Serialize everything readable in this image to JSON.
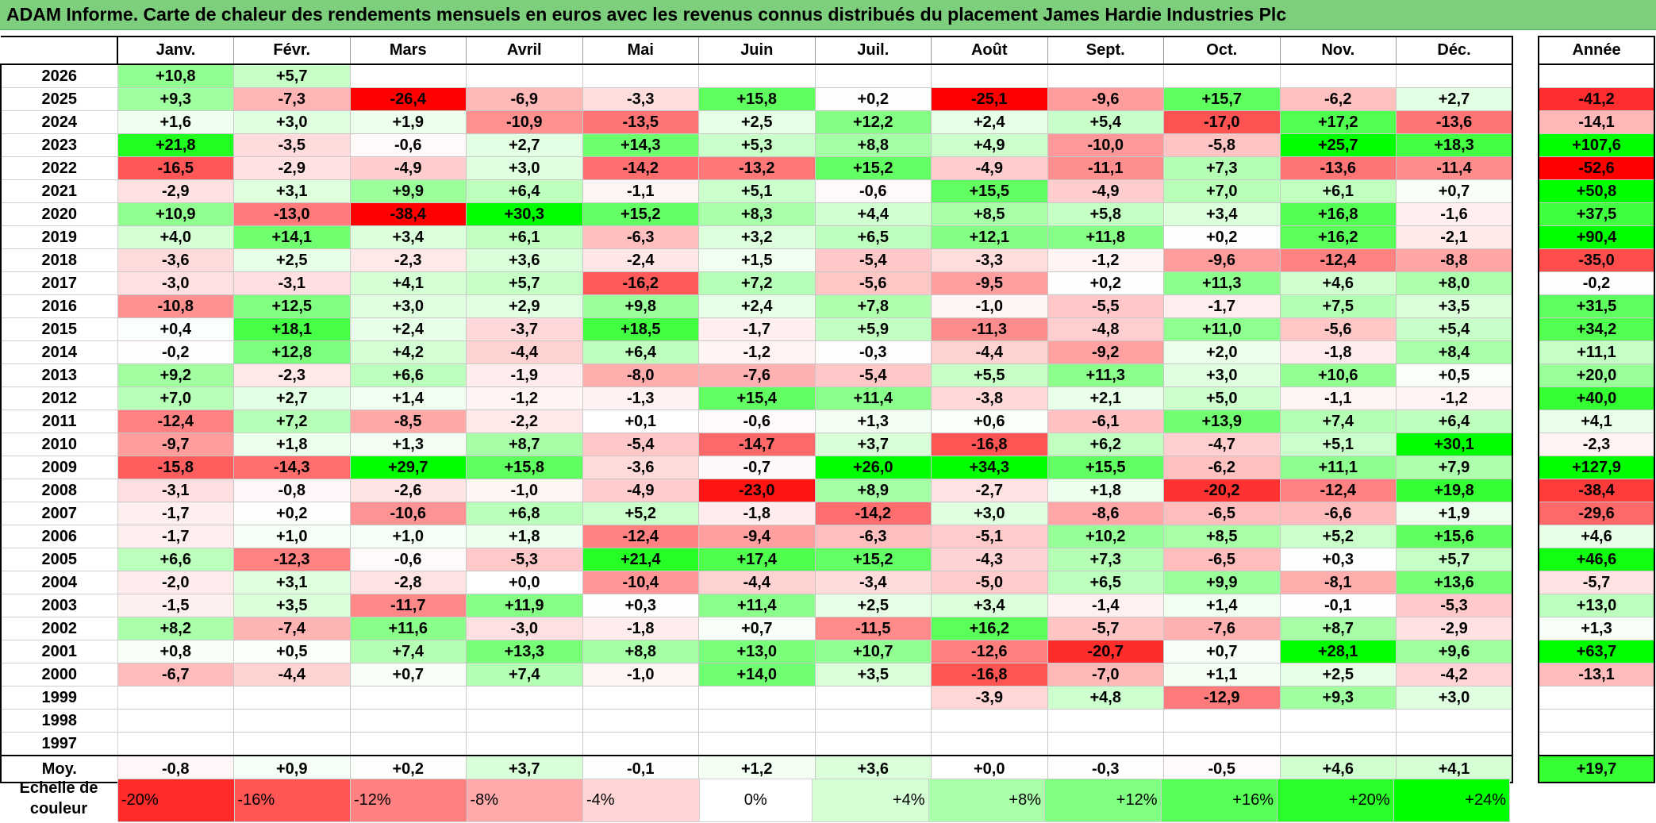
{
  "title": "ADAM Informe. Carte de chaleur des rendements mensuels en euros avec les revenus connus distribués du placement James Hardie Industries Plc",
  "colors": {
    "title_bg": "#7dcf7d",
    "max_red": "#ff0000",
    "max_green": "#00ff00",
    "white": "#ffffff"
  },
  "chart_data": {
    "type": "heatmap",
    "months": [
      "Janv.",
      "Févr.",
      "Mars",
      "Avril",
      "Mai",
      "Juin",
      "Juil.",
      "Août",
      "Sept.",
      "Oct.",
      "Nov.",
      "Déc."
    ],
    "annual_header": "Année",
    "average_label": "Moy.",
    "rows": [
      {
        "year": "2026",
        "values": [
          "+10,8",
          "+5,7",
          "",
          "",
          "",
          "",
          "",
          "",
          "",
          "",
          "",
          ""
        ],
        "annual": ""
      },
      {
        "year": "2025",
        "values": [
          "+9,3",
          "-7,3",
          "-26,4",
          "-6,9",
          "-3,3",
          "+15,8",
          "+0,2",
          "-25,1",
          "-9,6",
          "+15,7",
          "-6,2",
          "+2,7"
        ],
        "annual": "-41,2"
      },
      {
        "year": "2024",
        "values": [
          "+1,6",
          "+3,0",
          "+1,9",
          "-10,9",
          "-13,5",
          "+2,5",
          "+12,2",
          "+2,4",
          "+5,4",
          "-17,0",
          "+17,2",
          "-13,6"
        ],
        "annual": "-14,1"
      },
      {
        "year": "2023",
        "values": [
          "+21,8",
          "-3,5",
          "-0,6",
          "+2,7",
          "+14,3",
          "+5,3",
          "+8,8",
          "+4,9",
          "-10,0",
          "-5,8",
          "+25,7",
          "+18,3"
        ],
        "annual": "+107,6"
      },
      {
        "year": "2022",
        "values": [
          "-16,5",
          "-2,9",
          "-4,9",
          "+3,0",
          "-14,2",
          "-13,2",
          "+15,2",
          "-4,9",
          "-11,1",
          "+7,3",
          "-13,6",
          "-11,4"
        ],
        "annual": "-52,6"
      },
      {
        "year": "2021",
        "values": [
          "-2,9",
          "+3,1",
          "+9,9",
          "+6,4",
          "-1,1",
          "+5,1",
          "-0,6",
          "+15,5",
          "-4,9",
          "+7,0",
          "+6,1",
          "+0,7"
        ],
        "annual": "+50,8"
      },
      {
        "year": "2020",
        "values": [
          "+10,9",
          "-13,0",
          "-38,4",
          "+30,3",
          "+15,2",
          "+8,3",
          "+4,4",
          "+8,5",
          "+5,8",
          "+3,4",
          "+16,8",
          "-1,6"
        ],
        "annual": "+37,5"
      },
      {
        "year": "2019",
        "values": [
          "+4,0",
          "+14,1",
          "+3,4",
          "+6,1",
          "-6,3",
          "+3,2",
          "+6,5",
          "+12,1",
          "+11,8",
          "+0,2",
          "+16,2",
          "-2,1"
        ],
        "annual": "+90,4"
      },
      {
        "year": "2018",
        "values": [
          "-3,6",
          "+2,5",
          "-2,3",
          "+3,6",
          "-2,4",
          "+1,5",
          "-5,4",
          "-3,3",
          "-1,2",
          "-9,6",
          "-12,4",
          "-8,8"
        ],
        "annual": "-35,0"
      },
      {
        "year": "2017",
        "values": [
          "-3,0",
          "-3,1",
          "+4,1",
          "+5,7",
          "-16,2",
          "+7,2",
          "-5,6",
          "-9,5",
          "+0,2",
          "+11,3",
          "+4,6",
          "+8,0"
        ],
        "annual": "-0,2"
      },
      {
        "year": "2016",
        "values": [
          "-10,8",
          "+12,5",
          "+3,0",
          "+2,9",
          "+9,8",
          "+2,4",
          "+7,8",
          "-1,0",
          "-5,5",
          "-1,7",
          "+7,5",
          "+3,5"
        ],
        "annual": "+31,5"
      },
      {
        "year": "2015",
        "values": [
          "+0,4",
          "+18,1",
          "+2,4",
          "-3,7",
          "+18,5",
          "-1,7",
          "+5,9",
          "-11,3",
          "-4,8",
          "+11,0",
          "-5,6",
          "+5,4"
        ],
        "annual": "+34,2"
      },
      {
        "year": "2014",
        "values": [
          "-0,2",
          "+12,8",
          "+4,2",
          "-4,4",
          "+6,4",
          "-1,2",
          "-0,3",
          "-4,4",
          "-9,2",
          "+2,0",
          "-1,8",
          "+8,4"
        ],
        "annual": "+11,1"
      },
      {
        "year": "2013",
        "values": [
          "+9,2",
          "-2,3",
          "+6,6",
          "-1,9",
          "-8,0",
          "-7,6",
          "-5,4",
          "+5,5",
          "+11,3",
          "+3,0",
          "+10,6",
          "+0,5"
        ],
        "annual": "+20,0"
      },
      {
        "year": "2012",
        "values": [
          "+7,0",
          "+2,7",
          "+1,4",
          "-1,2",
          "-1,3",
          "+15,4",
          "+11,4",
          "-3,8",
          "+2,1",
          "+5,0",
          "-1,1",
          "-1,2"
        ],
        "annual": "+40,0"
      },
      {
        "year": "2011",
        "values": [
          "-12,4",
          "+7,2",
          "-8,5",
          "-2,2",
          "+0,1",
          "-0,6",
          "+1,3",
          "+0,6",
          "-6,1",
          "+13,9",
          "+7,4",
          "+6,4"
        ],
        "annual": "+4,1"
      },
      {
        "year": "2010",
        "values": [
          "-9,7",
          "+1,8",
          "+1,3",
          "+8,7",
          "-5,4",
          "-14,7",
          "+3,7",
          "-16,8",
          "+6,2",
          "-4,7",
          "+5,1",
          "+30,1"
        ],
        "annual": "-2,3"
      },
      {
        "year": "2009",
        "values": [
          "-15,8",
          "-14,3",
          "+29,7",
          "+15,8",
          "-3,6",
          "-0,7",
          "+26,0",
          "+34,3",
          "+15,5",
          "-6,2",
          "+11,1",
          "+7,9"
        ],
        "annual": "+127,9"
      },
      {
        "year": "2008",
        "values": [
          "-3,1",
          "-0,8",
          "-2,6",
          "-1,0",
          "-4,9",
          "-23,0",
          "+8,9",
          "-2,7",
          "+1,8",
          "-20,2",
          "-12,4",
          "+19,8"
        ],
        "annual": "-38,4"
      },
      {
        "year": "2007",
        "values": [
          "-1,7",
          "+0,2",
          "-10,6",
          "+6,8",
          "+5,2",
          "-1,8",
          "-14,2",
          "+3,0",
          "-8,6",
          "-6,5",
          "-6,6",
          "+1,9"
        ],
        "annual": "-29,6"
      },
      {
        "year": "2006",
        "values": [
          "-1,7",
          "+1,0",
          "+1,0",
          "+1,8",
          "-12,4",
          "-9,4",
          "-6,3",
          "-5,1",
          "+10,2",
          "+8,5",
          "+5,2",
          "+15,6"
        ],
        "annual": "+4,6"
      },
      {
        "year": "2005",
        "values": [
          "+6,6",
          "-12,3",
          "-0,6",
          "-5,3",
          "+21,4",
          "+17,4",
          "+15,2",
          "-4,3",
          "+7,3",
          "-6,5",
          "+0,3",
          "+5,7"
        ],
        "annual": "+46,6"
      },
      {
        "year": "2004",
        "values": [
          "-2,0",
          "+3,1",
          "-2,8",
          "+0,0",
          "-10,4",
          "-4,4",
          "-3,4",
          "-5,0",
          "+6,5",
          "+9,9",
          "-8,1",
          "+13,6"
        ],
        "annual": "-5,7"
      },
      {
        "year": "2003",
        "values": [
          "-1,5",
          "+3,5",
          "-11,7",
          "+11,9",
          "+0,3",
          "+11,4",
          "+2,5",
          "+3,4",
          "-1,4",
          "+1,4",
          "-0,1",
          "-5,3"
        ],
        "annual": "+13,0"
      },
      {
        "year": "2002",
        "values": [
          "+8,2",
          "-7,4",
          "+11,6",
          "-3,0",
          "-1,8",
          "+0,7",
          "-11,5",
          "+16,2",
          "-5,7",
          "-7,6",
          "+8,7",
          "-2,9"
        ],
        "annual": "+1,3"
      },
      {
        "year": "2001",
        "values": [
          "+0,8",
          "+0,5",
          "+7,4",
          "+13,3",
          "+8,8",
          "+13,0",
          "+10,7",
          "-12,6",
          "-20,7",
          "+0,7",
          "+28,1",
          "+9,6"
        ],
        "annual": "+63,7"
      },
      {
        "year": "2000",
        "values": [
          "-6,7",
          "-4,4",
          "+0,7",
          "+7,4",
          "-1,0",
          "+14,0",
          "+3,5",
          "-16,8",
          "-7,0",
          "+1,1",
          "+2,5",
          "-4,2"
        ],
        "annual": "-13,1"
      },
      {
        "year": "1999",
        "values": [
          "",
          "",
          "",
          "",
          "",
          "",
          "",
          "-3,9",
          "+4,8",
          "-12,9",
          "+9,3",
          "+3,0"
        ],
        "annual": ""
      },
      {
        "year": "1998",
        "values": [
          "",
          "",
          "",
          "",
          "",
          "",
          "",
          "",
          "",
          "",
          "",
          ""
        ],
        "annual": ""
      },
      {
        "year": "1997",
        "values": [
          "",
          "",
          "",
          "",
          "",
          "",
          "",
          "",
          "",
          "",
          "",
          ""
        ],
        "annual": ""
      }
    ],
    "average": {
      "values": [
        "-0,8",
        "+0,9",
        "+0,2",
        "+3,7",
        "-0,1",
        "+1,2",
        "+3,6",
        "+0,0",
        "-0,3",
        "-0,5",
        "+4,6",
        "+4,1"
      ],
      "annual": "+19,7"
    },
    "color_scale": {
      "label": "Echelle de couleur",
      "steps": [
        {
          "label": "-20%",
          "value": -20
        },
        {
          "label": "-16%",
          "value": -16
        },
        {
          "label": "-12%",
          "value": -12
        },
        {
          "label": "-8%",
          "value": -8
        },
        {
          "label": "-4%",
          "value": -4
        },
        {
          "label": "0%",
          "value": 0
        },
        {
          "label": "+4%",
          "value": 4
        },
        {
          "label": "+8%",
          "value": 8
        },
        {
          "label": "+12%",
          "value": 12
        },
        {
          "label": "+16%",
          "value": 16
        },
        {
          "label": "+20%",
          "value": 20
        },
        {
          "label": "+24%",
          "value": 24
        }
      ]
    }
  }
}
